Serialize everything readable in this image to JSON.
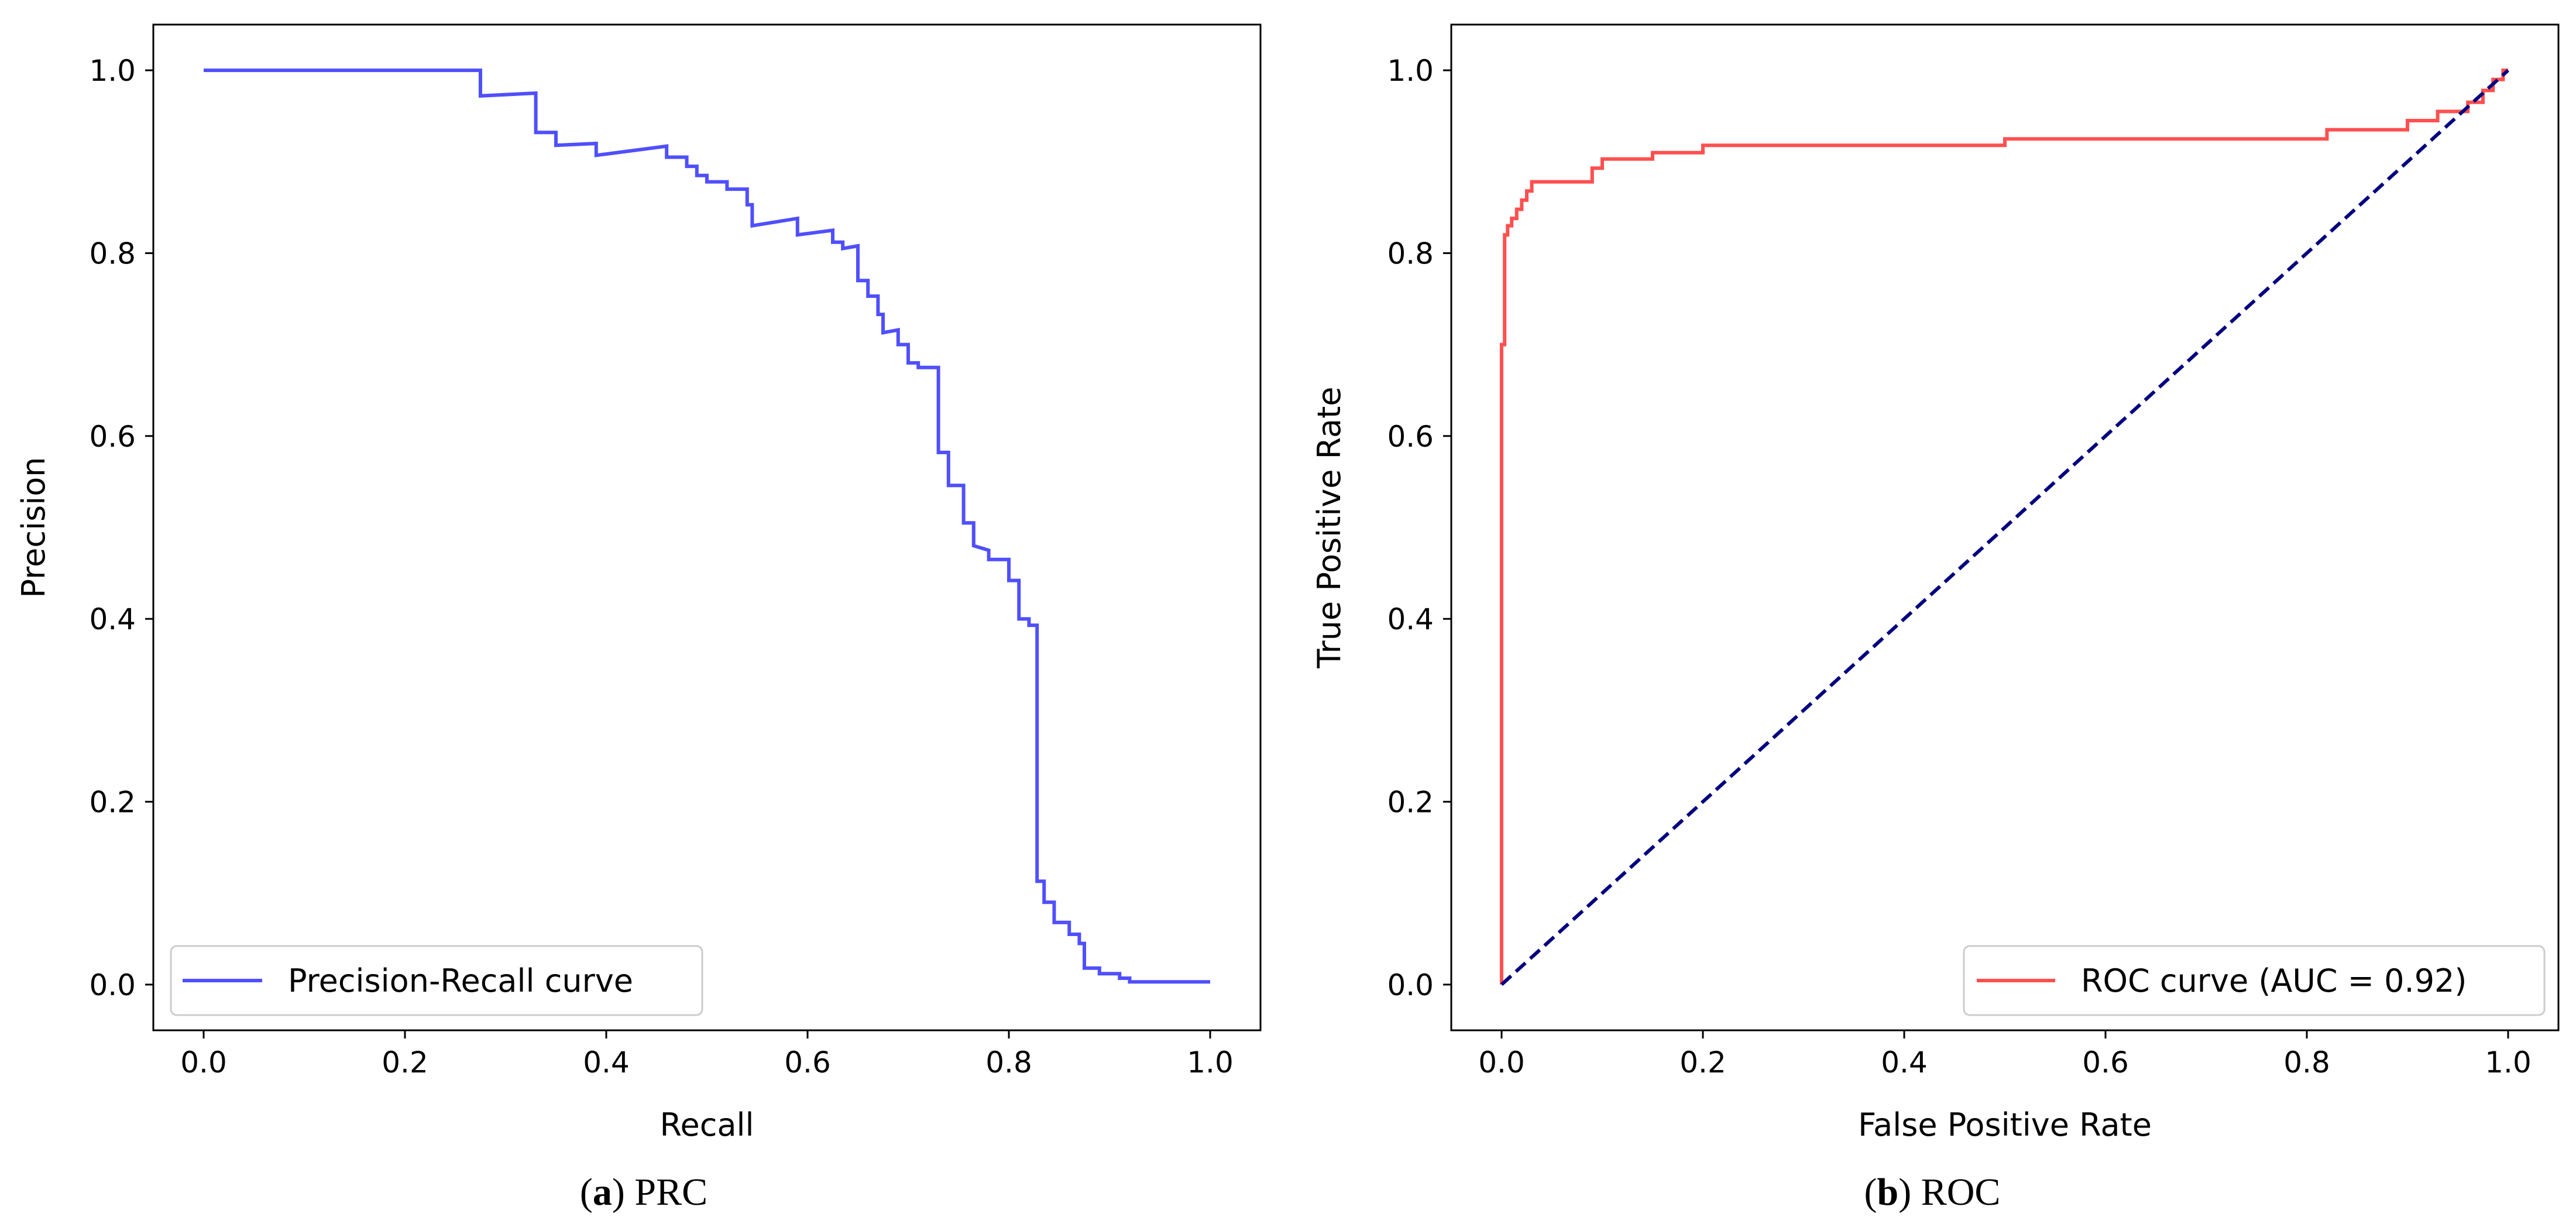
{
  "chart_data": [
    {
      "id": "prc",
      "type": "line",
      "xlabel": "Recall",
      "ylabel": "Precision",
      "xlim": [
        -0.05,
        1.05
      ],
      "ylim": [
        -0.05,
        1.05
      ],
      "xticks": [
        0.0,
        0.2,
        0.4,
        0.6,
        0.8,
        1.0
      ],
      "yticks": [
        0.0,
        0.2,
        0.4,
        0.6,
        0.8,
        1.0
      ],
      "tick_labels": [
        "0.0",
        "0.2",
        "0.4",
        "0.6",
        "0.8",
        "1.0"
      ],
      "grid": false,
      "legend_position": "lower-left",
      "series": [
        {
          "name": "Precision-Recall curve",
          "color": "#4f4fff",
          "style": "solid",
          "step": true,
          "x": [
            0.0,
            0.275,
            0.275,
            0.33,
            0.33,
            0.35,
            0.35,
            0.39,
            0.39,
            0.46,
            0.46,
            0.48,
            0.48,
            0.49,
            0.49,
            0.5,
            0.5,
            0.52,
            0.52,
            0.54,
            0.54,
            0.545,
            0.545,
            0.59,
            0.59,
            0.625,
            0.625,
            0.635,
            0.635,
            0.65,
            0.65,
            0.66,
            0.66,
            0.67,
            0.67,
            0.675,
            0.675,
            0.69,
            0.69,
            0.7,
            0.7,
            0.71,
            0.71,
            0.73,
            0.73,
            0.74,
            0.74,
            0.755,
            0.755,
            0.765,
            0.765,
            0.78,
            0.78,
            0.8,
            0.8,
            0.81,
            0.81,
            0.82,
            0.82,
            0.828,
            0.828,
            0.835,
            0.835,
            0.845,
            0.845,
            0.86,
            0.86,
            0.87,
            0.87,
            0.875,
            0.875,
            0.89,
            0.89,
            0.91,
            0.91,
            0.92,
            0.92,
            1.0
          ],
          "y": [
            1.0,
            1.0,
            0.972,
            0.975,
            0.932,
            0.932,
            0.918,
            0.92,
            0.907,
            0.917,
            0.905,
            0.905,
            0.895,
            0.895,
            0.885,
            0.885,
            0.878,
            0.878,
            0.87,
            0.87,
            0.853,
            0.853,
            0.83,
            0.838,
            0.82,
            0.825,
            0.812,
            0.812,
            0.805,
            0.808,
            0.77,
            0.77,
            0.753,
            0.753,
            0.733,
            0.733,
            0.713,
            0.716,
            0.7,
            0.7,
            0.68,
            0.68,
            0.675,
            0.675,
            0.582,
            0.582,
            0.546,
            0.546,
            0.505,
            0.505,
            0.48,
            0.475,
            0.465,
            0.465,
            0.442,
            0.442,
            0.4,
            0.4,
            0.393,
            0.393,
            0.113,
            0.113,
            0.09,
            0.09,
            0.068,
            0.068,
            0.055,
            0.055,
            0.045,
            0.045,
            0.018,
            0.018,
            0.012,
            0.012,
            0.007,
            0.007,
            0.003,
            0.003
          ]
        }
      ],
      "caption": {
        "letter": "a",
        "text": "PRC"
      }
    },
    {
      "id": "roc",
      "type": "line",
      "xlabel": "False Positive Rate",
      "ylabel": "True Positive Rate",
      "xlim": [
        -0.05,
        1.05
      ],
      "ylim": [
        -0.05,
        1.05
      ],
      "xticks": [
        0.0,
        0.2,
        0.4,
        0.6,
        0.8,
        1.0
      ],
      "yticks": [
        0.0,
        0.2,
        0.4,
        0.6,
        0.8,
        1.0
      ],
      "tick_labels": [
        "0.0",
        "0.2",
        "0.4",
        "0.6",
        "0.8",
        "1.0"
      ],
      "grid": false,
      "legend_position": "lower-right",
      "series": [
        {
          "name": "ROC curve (AUC = 0.92)",
          "color": "#ff4f4f",
          "style": "solid",
          "step": true,
          "x": [
            0.0,
            0.0,
            0.003,
            0.003,
            0.006,
            0.006,
            0.01,
            0.01,
            0.015,
            0.015,
            0.02,
            0.02,
            0.025,
            0.025,
            0.03,
            0.03,
            0.09,
            0.09,
            0.1,
            0.1,
            0.15,
            0.15,
            0.2,
            0.2,
            0.5,
            0.5,
            0.82,
            0.82,
            0.9,
            0.9,
            0.93,
            0.93,
            0.96,
            0.96,
            0.975,
            0.975,
            0.985,
            0.985,
            0.995,
            0.995,
            1.0,
            1.0
          ],
          "y": [
            0.0,
            0.7,
            0.7,
            0.82,
            0.82,
            0.83,
            0.83,
            0.838,
            0.838,
            0.848,
            0.848,
            0.858,
            0.858,
            0.868,
            0.868,
            0.878,
            0.878,
            0.893,
            0.893,
            0.903,
            0.903,
            0.91,
            0.91,
            0.918,
            0.918,
            0.925,
            0.925,
            0.935,
            0.935,
            0.945,
            0.945,
            0.955,
            0.955,
            0.965,
            0.965,
            0.978,
            0.978,
            0.99,
            0.99,
            1.0,
            1.0,
            1.0
          ]
        },
        {
          "name": "chance diagonal",
          "color": "#00007f",
          "style": "dashed",
          "step": false,
          "x": [
            0.0,
            1.0
          ],
          "y": [
            0.0,
            1.0
          ]
        }
      ],
      "caption": {
        "letter": "b",
        "text": "ROC"
      }
    }
  ]
}
